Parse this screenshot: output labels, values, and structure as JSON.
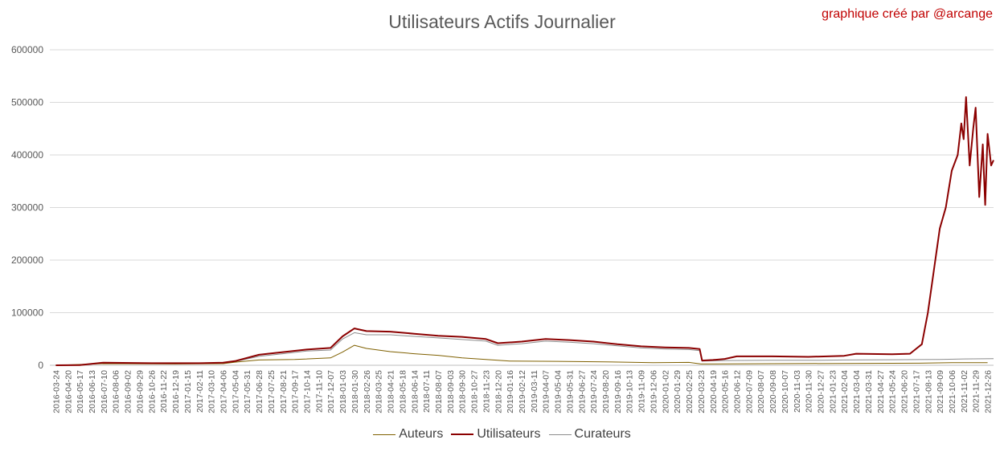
{
  "chart_data": {
    "type": "line",
    "title": "Utilisateurs Actifs Journalier",
    "credit": "graphique créé par @arcange",
    "xlabel": "",
    "ylabel": "",
    "ylim": [
      0,
      600000
    ],
    "yticks": [
      "0",
      "100000",
      "200000",
      "300000",
      "400000",
      "500000",
      "600000"
    ],
    "ytick_values": [
      0,
      100000,
      200000,
      300000,
      400000,
      500000,
      600000
    ],
    "grid": true,
    "legend_position": "bottom",
    "x_tick_labels": [
      "2016-03-24",
      "2016-04-20",
      "2016-05-17",
      "2016-06-13",
      "2016-07-10",
      "2016-08-06",
      "2016-09-02",
      "2016-09-29",
      "2016-10-26",
      "2016-11-22",
      "2016-12-19",
      "2017-01-15",
      "2017-02-11",
      "2017-03-10",
      "2017-04-06",
      "2017-05-04",
      "2017-05-31",
      "2017-06-28",
      "2017-07-25",
      "2017-08-21",
      "2017-09-17",
      "2017-10-14",
      "2017-11-10",
      "2017-12-07",
      "2018-01-03",
      "2018-01-30",
      "2018-02-26",
      "2018-03-25",
      "2018-04-21",
      "2018-05-18",
      "2018-06-14",
      "2018-07-11",
      "2018-08-07",
      "2018-09-03",
      "2018-09-30",
      "2018-10-27",
      "2018-11-23",
      "2018-12-20",
      "2019-01-16",
      "2019-02-12",
      "2019-03-11",
      "2019-04-07",
      "2019-05-04",
      "2019-05-31",
      "2019-06-27",
      "2019-07-24",
      "2019-08-20",
      "2019-09-16",
      "2019-10-13",
      "2019-11-09",
      "2019-12-06",
      "2020-01-02",
      "2020-01-29",
      "2020-02-25",
      "2020-03-23",
      "2020-04-19",
      "2020-05-16",
      "2020-06-12",
      "2020-07-09",
      "2020-08-07",
      "2020-09-08",
      "2020-10-07",
      "2020-11-03",
      "2020-11-30",
      "2020-12-27",
      "2021-01-23",
      "2021-02-04",
      "2021-03-04",
      "2021-03-31",
      "2021-04-27",
      "2021-05-24",
      "2021-06-20",
      "2021-07-17",
      "2021-08-13",
      "2021-09-09",
      "2021-10-06",
      "2021-11-02",
      "2021-11-29",
      "2021-12-26"
    ],
    "series": [
      {
        "name": "Auteurs",
        "color": "#7f6000",
        "points": [
          [
            0,
            0
          ],
          [
            4,
            3000
          ],
          [
            10,
            2500
          ],
          [
            14,
            3000
          ],
          [
            15,
            6000
          ],
          [
            17,
            10000
          ],
          [
            20,
            11000
          ],
          [
            23,
            14000
          ],
          [
            24,
            25000
          ],
          [
            25,
            38000
          ],
          [
            26,
            32000
          ],
          [
            28,
            26000
          ],
          [
            30,
            22000
          ],
          [
            32,
            19000
          ],
          [
            34,
            14000
          ],
          [
            36,
            11000
          ],
          [
            38,
            8000
          ],
          [
            42,
            7500
          ],
          [
            46,
            6500
          ],
          [
            50,
            5000
          ],
          [
            53,
            5500
          ],
          [
            54,
            2500
          ],
          [
            60,
            3000
          ],
          [
            66,
            3500
          ],
          [
            72,
            4000
          ],
          [
            75,
            5000
          ],
          [
            78,
            5000
          ]
        ]
      },
      {
        "name": "Utilisateurs",
        "color": "#8b0000",
        "points": [
          [
            0,
            0
          ],
          [
            2,
            500
          ],
          [
            4,
            5000
          ],
          [
            8,
            4000
          ],
          [
            12,
            4000
          ],
          [
            14,
            5000
          ],
          [
            15,
            8000
          ],
          [
            17,
            20000
          ],
          [
            19,
            25000
          ],
          [
            21,
            30000
          ],
          [
            23,
            33000
          ],
          [
            24,
            55000
          ],
          [
            25,
            70000
          ],
          [
            26,
            65000
          ],
          [
            28,
            64000
          ],
          [
            30,
            60000
          ],
          [
            32,
            56000
          ],
          [
            34,
            54000
          ],
          [
            36,
            50000
          ],
          [
            37,
            42000
          ],
          [
            39,
            45000
          ],
          [
            41,
            50000
          ],
          [
            43,
            48000
          ],
          [
            45,
            45000
          ],
          [
            47,
            40000
          ],
          [
            49,
            36000
          ],
          [
            51,
            34000
          ],
          [
            53,
            33000
          ],
          [
            53.9,
            31000
          ],
          [
            54.1,
            9000
          ],
          [
            55,
            10000
          ],
          [
            56,
            12000
          ],
          [
            57,
            17000
          ],
          [
            60,
            17000
          ],
          [
            63,
            16000
          ],
          [
            66,
            18000
          ],
          [
            67,
            22000
          ],
          [
            70,
            21000
          ],
          [
            71.5,
            22000
          ],
          [
            72.5,
            40000
          ],
          [
            73,
            100000
          ],
          [
            73.5,
            180000
          ],
          [
            74,
            260000
          ],
          [
            74.5,
            300000
          ],
          [
            75,
            370000
          ],
          [
            75.5,
            400000
          ],
          [
            75.8,
            460000
          ],
          [
            76,
            430000
          ],
          [
            76.2,
            510000
          ],
          [
            76.5,
            380000
          ],
          [
            76.8,
            450000
          ],
          [
            77,
            490000
          ],
          [
            77.3,
            320000
          ],
          [
            77.6,
            420000
          ],
          [
            77.8,
            305000
          ],
          [
            78,
            440000
          ],
          [
            78.3,
            380000
          ],
          [
            78.5,
            390000
          ]
        ]
      },
      {
        "name": "Curateurs",
        "color": "#8c8c8c",
        "points": [
          [
            0,
            0
          ],
          [
            2,
            400
          ],
          [
            4,
            4000
          ],
          [
            8,
            3500
          ],
          [
            12,
            3500
          ],
          [
            14,
            4500
          ],
          [
            15,
            7000
          ],
          [
            17,
            17000
          ],
          [
            19,
            22000
          ],
          [
            21,
            27000
          ],
          [
            23,
            29000
          ],
          [
            24,
            50000
          ],
          [
            25,
            62000
          ],
          [
            26,
            58000
          ],
          [
            28,
            58000
          ],
          [
            30,
            55000
          ],
          [
            32,
            52000
          ],
          [
            34,
            49000
          ],
          [
            36,
            46000
          ],
          [
            37,
            38000
          ],
          [
            39,
            41000
          ],
          [
            41,
            46000
          ],
          [
            43,
            44000
          ],
          [
            45,
            41000
          ],
          [
            47,
            37000
          ],
          [
            49,
            33000
          ],
          [
            51,
            31000
          ],
          [
            53,
            30000
          ],
          [
            53.9,
            28000
          ],
          [
            54.1,
            8000
          ],
          [
            56,
            9000
          ],
          [
            60,
            9500
          ],
          [
            64,
            9500
          ],
          [
            66,
            10000
          ],
          [
            70,
            10500
          ],
          [
            74,
            11000
          ],
          [
            76,
            12000
          ],
          [
            78.5,
            12500
          ]
        ]
      }
    ]
  }
}
